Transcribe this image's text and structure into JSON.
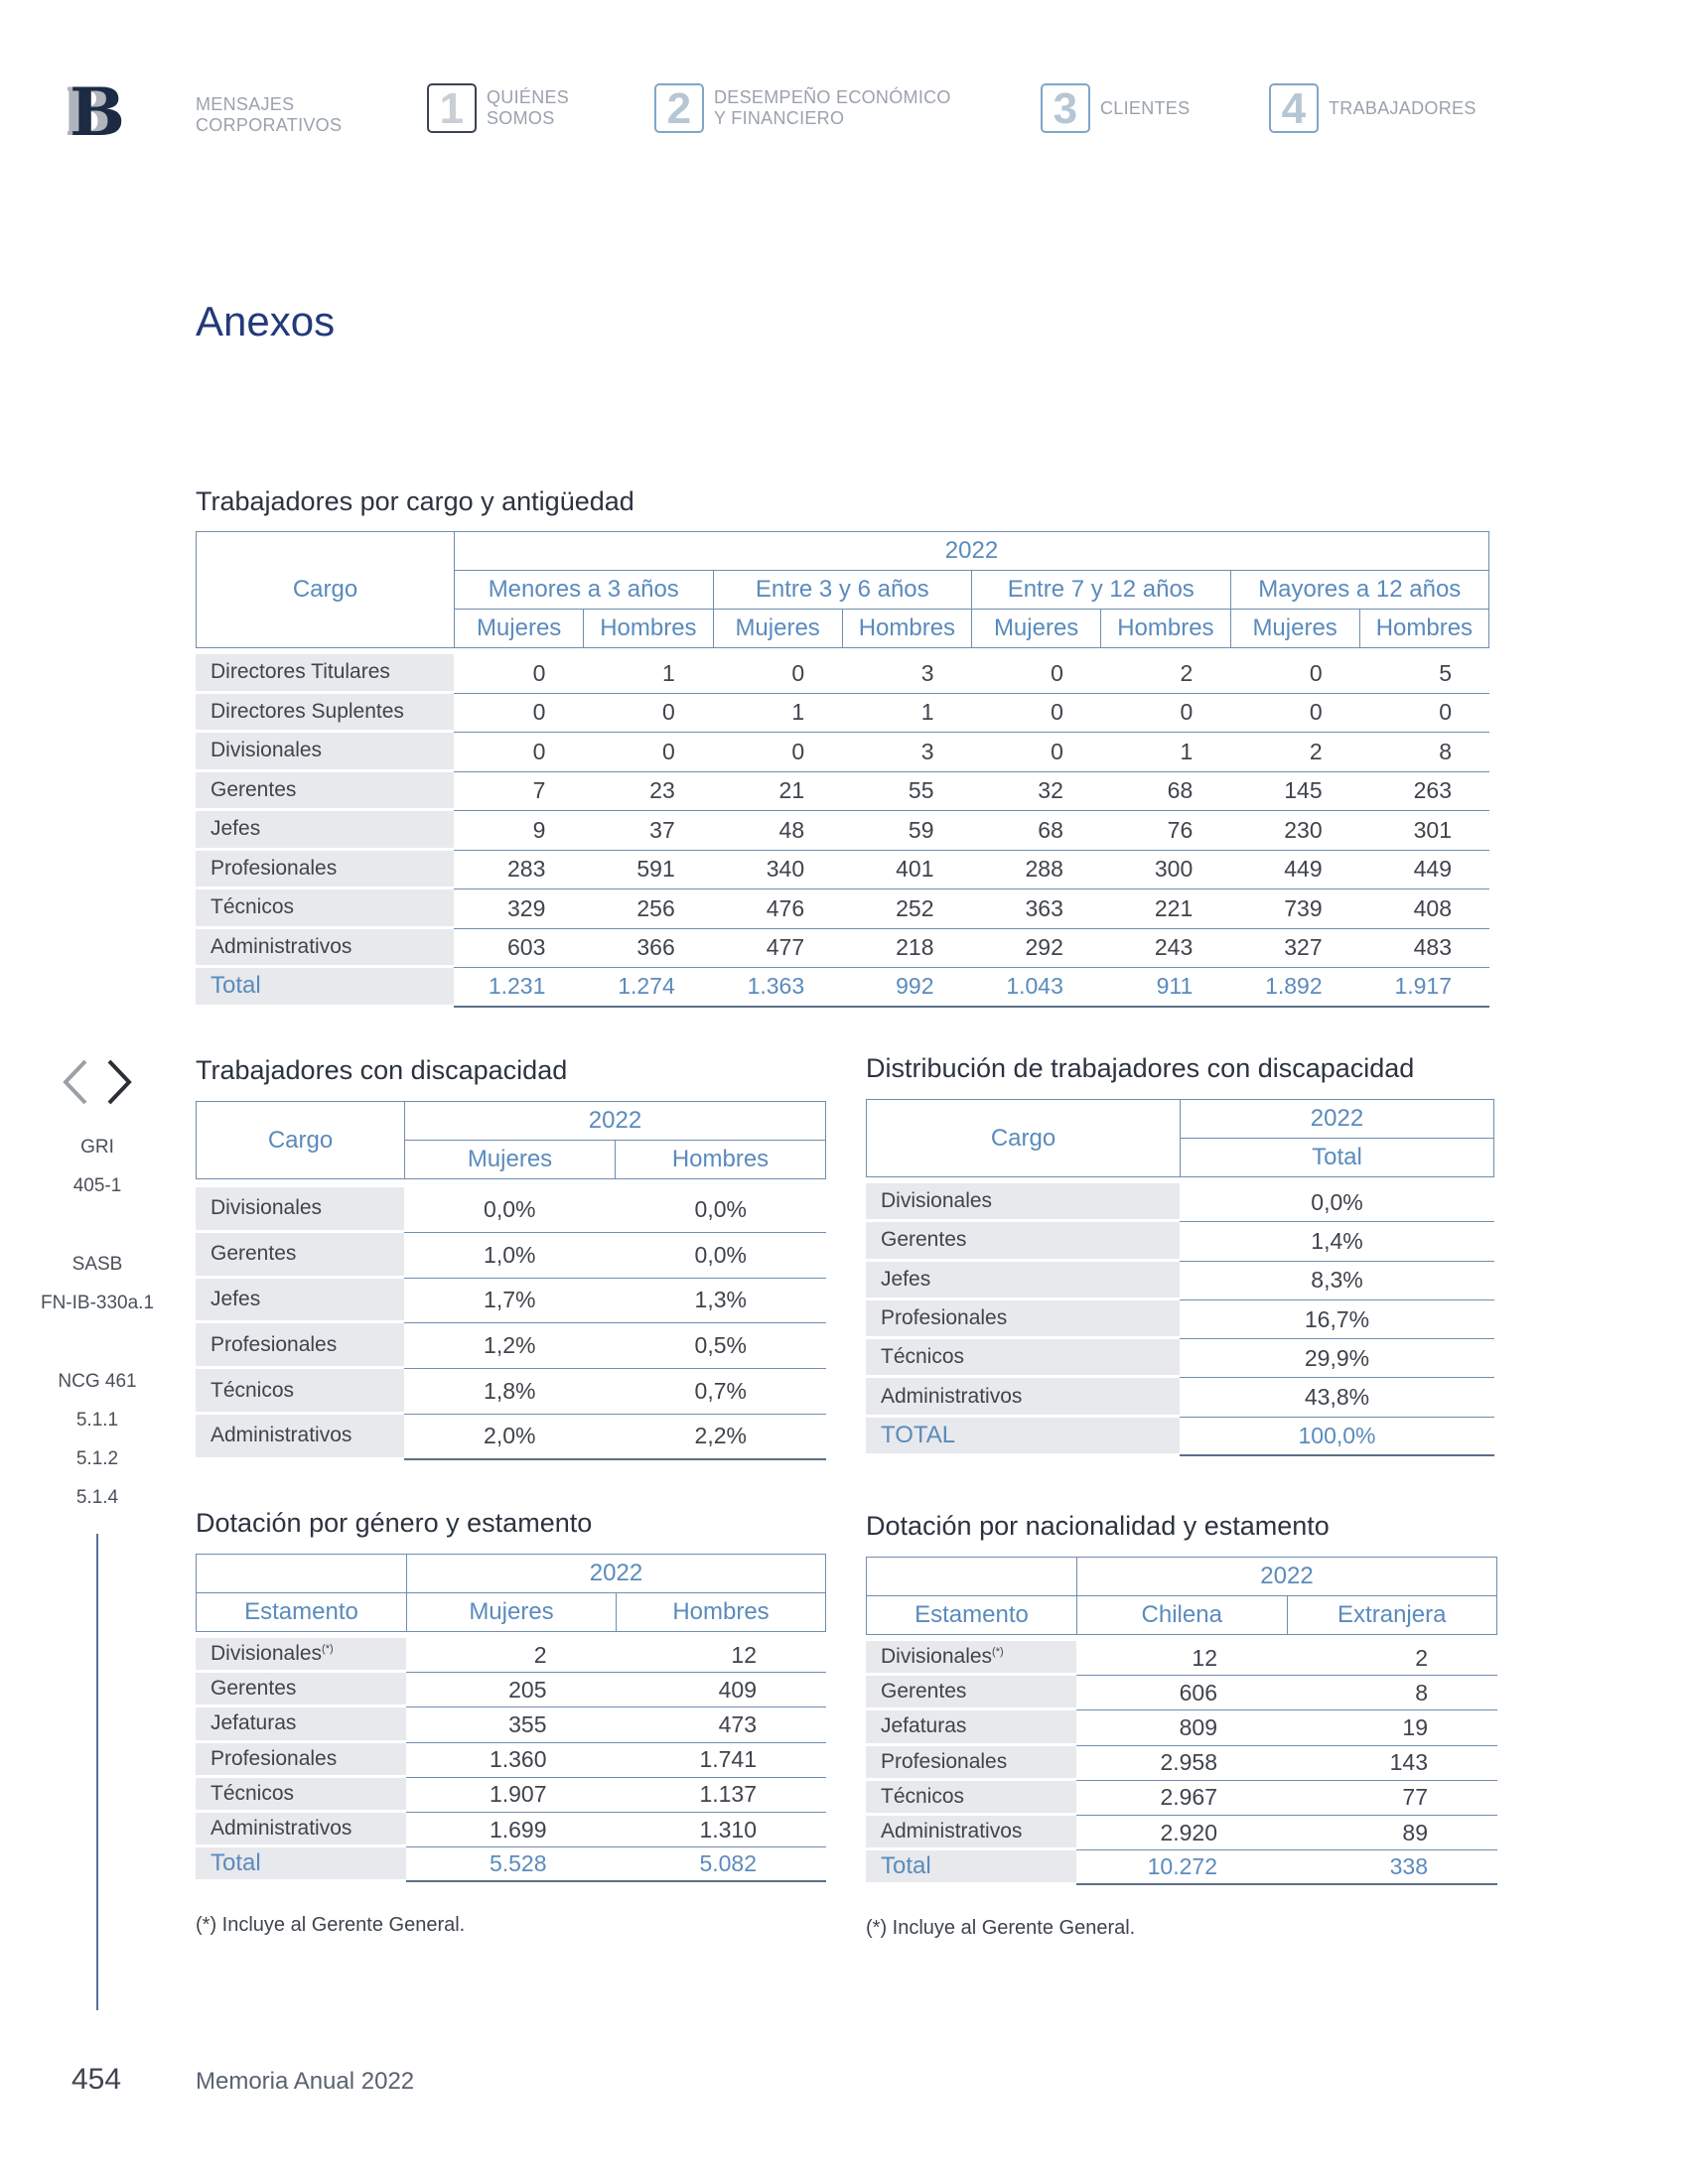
{
  "header": {
    "nav": [
      {
        "label": "MENSAJES\nCORPORATIVOS"
      },
      {
        "num": "1",
        "label": "QUIÉNES\nSOMOS"
      },
      {
        "num": "2",
        "label": "DESEMPEÑO ECONÓMICO\nY FINANCIERO"
      },
      {
        "num": "3",
        "label": "CLIENTES"
      },
      {
        "num": "4",
        "label": "TRABAJADORES"
      }
    ]
  },
  "page_title": "Anexos",
  "t1": {
    "title": "Trabajadores por cargo y antigüedad",
    "col_cargo": "Cargo",
    "year": "2022",
    "groups": [
      "Menores a 3 años",
      "Entre 3 y 6 años",
      "Entre 7 y 12 años",
      "Mayores a 12 años"
    ],
    "sub": [
      "Mujeres",
      "Hombres"
    ],
    "rows": [
      {
        "label": "Directores Titulares",
        "v": [
          "0",
          "1",
          "0",
          "3",
          "0",
          "2",
          "0",
          "5"
        ]
      },
      {
        "label": "Directores Suplentes",
        "v": [
          "0",
          "0",
          "1",
          "1",
          "0",
          "0",
          "0",
          "0"
        ]
      },
      {
        "label": "Divisionales",
        "v": [
          "0",
          "0",
          "0",
          "3",
          "0",
          "1",
          "2",
          "8"
        ]
      },
      {
        "label": "Gerentes",
        "v": [
          "7",
          "23",
          "21",
          "55",
          "32",
          "68",
          "145",
          "263"
        ]
      },
      {
        "label": "Jefes",
        "v": [
          "9",
          "37",
          "48",
          "59",
          "68",
          "76",
          "230",
          "301"
        ]
      },
      {
        "label": "Profesionales",
        "v": [
          "283",
          "591",
          "340",
          "401",
          "288",
          "300",
          "449",
          "449"
        ]
      },
      {
        "label": "Técnicos",
        "v": [
          "329",
          "256",
          "476",
          "252",
          "363",
          "221",
          "739",
          "408"
        ]
      },
      {
        "label": "Administrativos",
        "v": [
          "603",
          "366",
          "477",
          "218",
          "292",
          "243",
          "327",
          "483"
        ]
      },
      {
        "label": "Total",
        "v": [
          "1.231",
          "1.274",
          "1.363",
          "992",
          "1.043",
          "911",
          "1.892",
          "1.917"
        ]
      }
    ]
  },
  "t2": {
    "title": "Trabajadores con discapacidad",
    "col_cargo": "Cargo",
    "year": "2022",
    "sub": [
      "Mujeres",
      "Hombres"
    ],
    "rows": [
      {
        "label": "Divisionales",
        "v": [
          "0,0%",
          "0,0%"
        ]
      },
      {
        "label": "Gerentes",
        "v": [
          "1,0%",
          "0,0%"
        ]
      },
      {
        "label": "Jefes",
        "v": [
          "1,7%",
          "1,3%"
        ]
      },
      {
        "label": "Profesionales",
        "v": [
          "1,2%",
          "0,5%"
        ]
      },
      {
        "label": "Técnicos",
        "v": [
          "1,8%",
          "0,7%"
        ]
      },
      {
        "label": "Administrativos",
        "v": [
          "2,0%",
          "2,2%"
        ]
      }
    ]
  },
  "t3": {
    "title": "Distribución de trabajadores con discapacidad",
    "col_cargo": "Cargo",
    "year": "2022",
    "sub": [
      "Total"
    ],
    "rows": [
      {
        "label": "Divisionales",
        "v": [
          "0,0%"
        ]
      },
      {
        "label": "Gerentes",
        "v": [
          "1,4%"
        ]
      },
      {
        "label": "Jefes",
        "v": [
          "8,3%"
        ]
      },
      {
        "label": "Profesionales",
        "v": [
          "16,7%"
        ]
      },
      {
        "label": "Técnicos",
        "v": [
          "29,9%"
        ]
      },
      {
        "label": "Administrativos",
        "v": [
          "43,8%"
        ]
      },
      {
        "label": "TOTAL",
        "v": [
          "100,0%"
        ]
      }
    ]
  },
  "t4": {
    "title": "Dotación por género y estamento",
    "col_cargo": "Estamento",
    "year": "2022",
    "sub": [
      "Mujeres",
      "Hombres"
    ],
    "rows": [
      {
        "label": "Divisionales",
        "sup": "(*)",
        "v": [
          "2",
          "12"
        ]
      },
      {
        "label": "Gerentes",
        "v": [
          "205",
          "409"
        ]
      },
      {
        "label": "Jefaturas",
        "v": [
          "355",
          "473"
        ]
      },
      {
        "label": "Profesionales",
        "v": [
          "1.360",
          "1.741"
        ]
      },
      {
        "label": "Técnicos",
        "v": [
          "1.907",
          "1.137"
        ]
      },
      {
        "label": "Administrativos",
        "v": [
          "1.699",
          "1.310"
        ]
      },
      {
        "label": "Total",
        "v": [
          "5.528",
          "5.082"
        ]
      }
    ],
    "note": "(*) Incluye al Gerente General."
  },
  "t5": {
    "title": "Dotación por nacionalidad y estamento",
    "col_cargo": "Estamento",
    "year": "2022",
    "sub": [
      "Chilena",
      "Extranjera"
    ],
    "rows": [
      {
        "label": "Divisionales",
        "sup": "(*)",
        "v": [
          "12",
          "2"
        ]
      },
      {
        "label": "Gerentes",
        "v": [
          "606",
          "8"
        ]
      },
      {
        "label": "Jefaturas",
        "v": [
          "809",
          "19"
        ]
      },
      {
        "label": "Profesionales",
        "v": [
          "2.958",
          "143"
        ]
      },
      {
        "label": "Técnicos",
        "v": [
          "2.967",
          "77"
        ]
      },
      {
        "label": "Administrativos",
        "v": [
          "2.920",
          "89"
        ]
      },
      {
        "label": "Total",
        "v": [
          "10.272",
          "338"
        ]
      }
    ],
    "note": "(*) Incluye al Gerente General."
  },
  "side": {
    "items": [
      "GRI",
      "405-1",
      "SASB",
      "FN-IB-330a.1",
      "NCG 461",
      "5.1.1",
      "5.1.2",
      "5.1.4"
    ]
  },
  "footer": {
    "page_number": "454",
    "doc_title": "Memoria Anual 2022"
  },
  "colors": {
    "title_blue": "#233a7a",
    "header_blue": "#5a8bbd",
    "rule": "#6f8eaf",
    "label_bg": "#e8e9ec"
  }
}
